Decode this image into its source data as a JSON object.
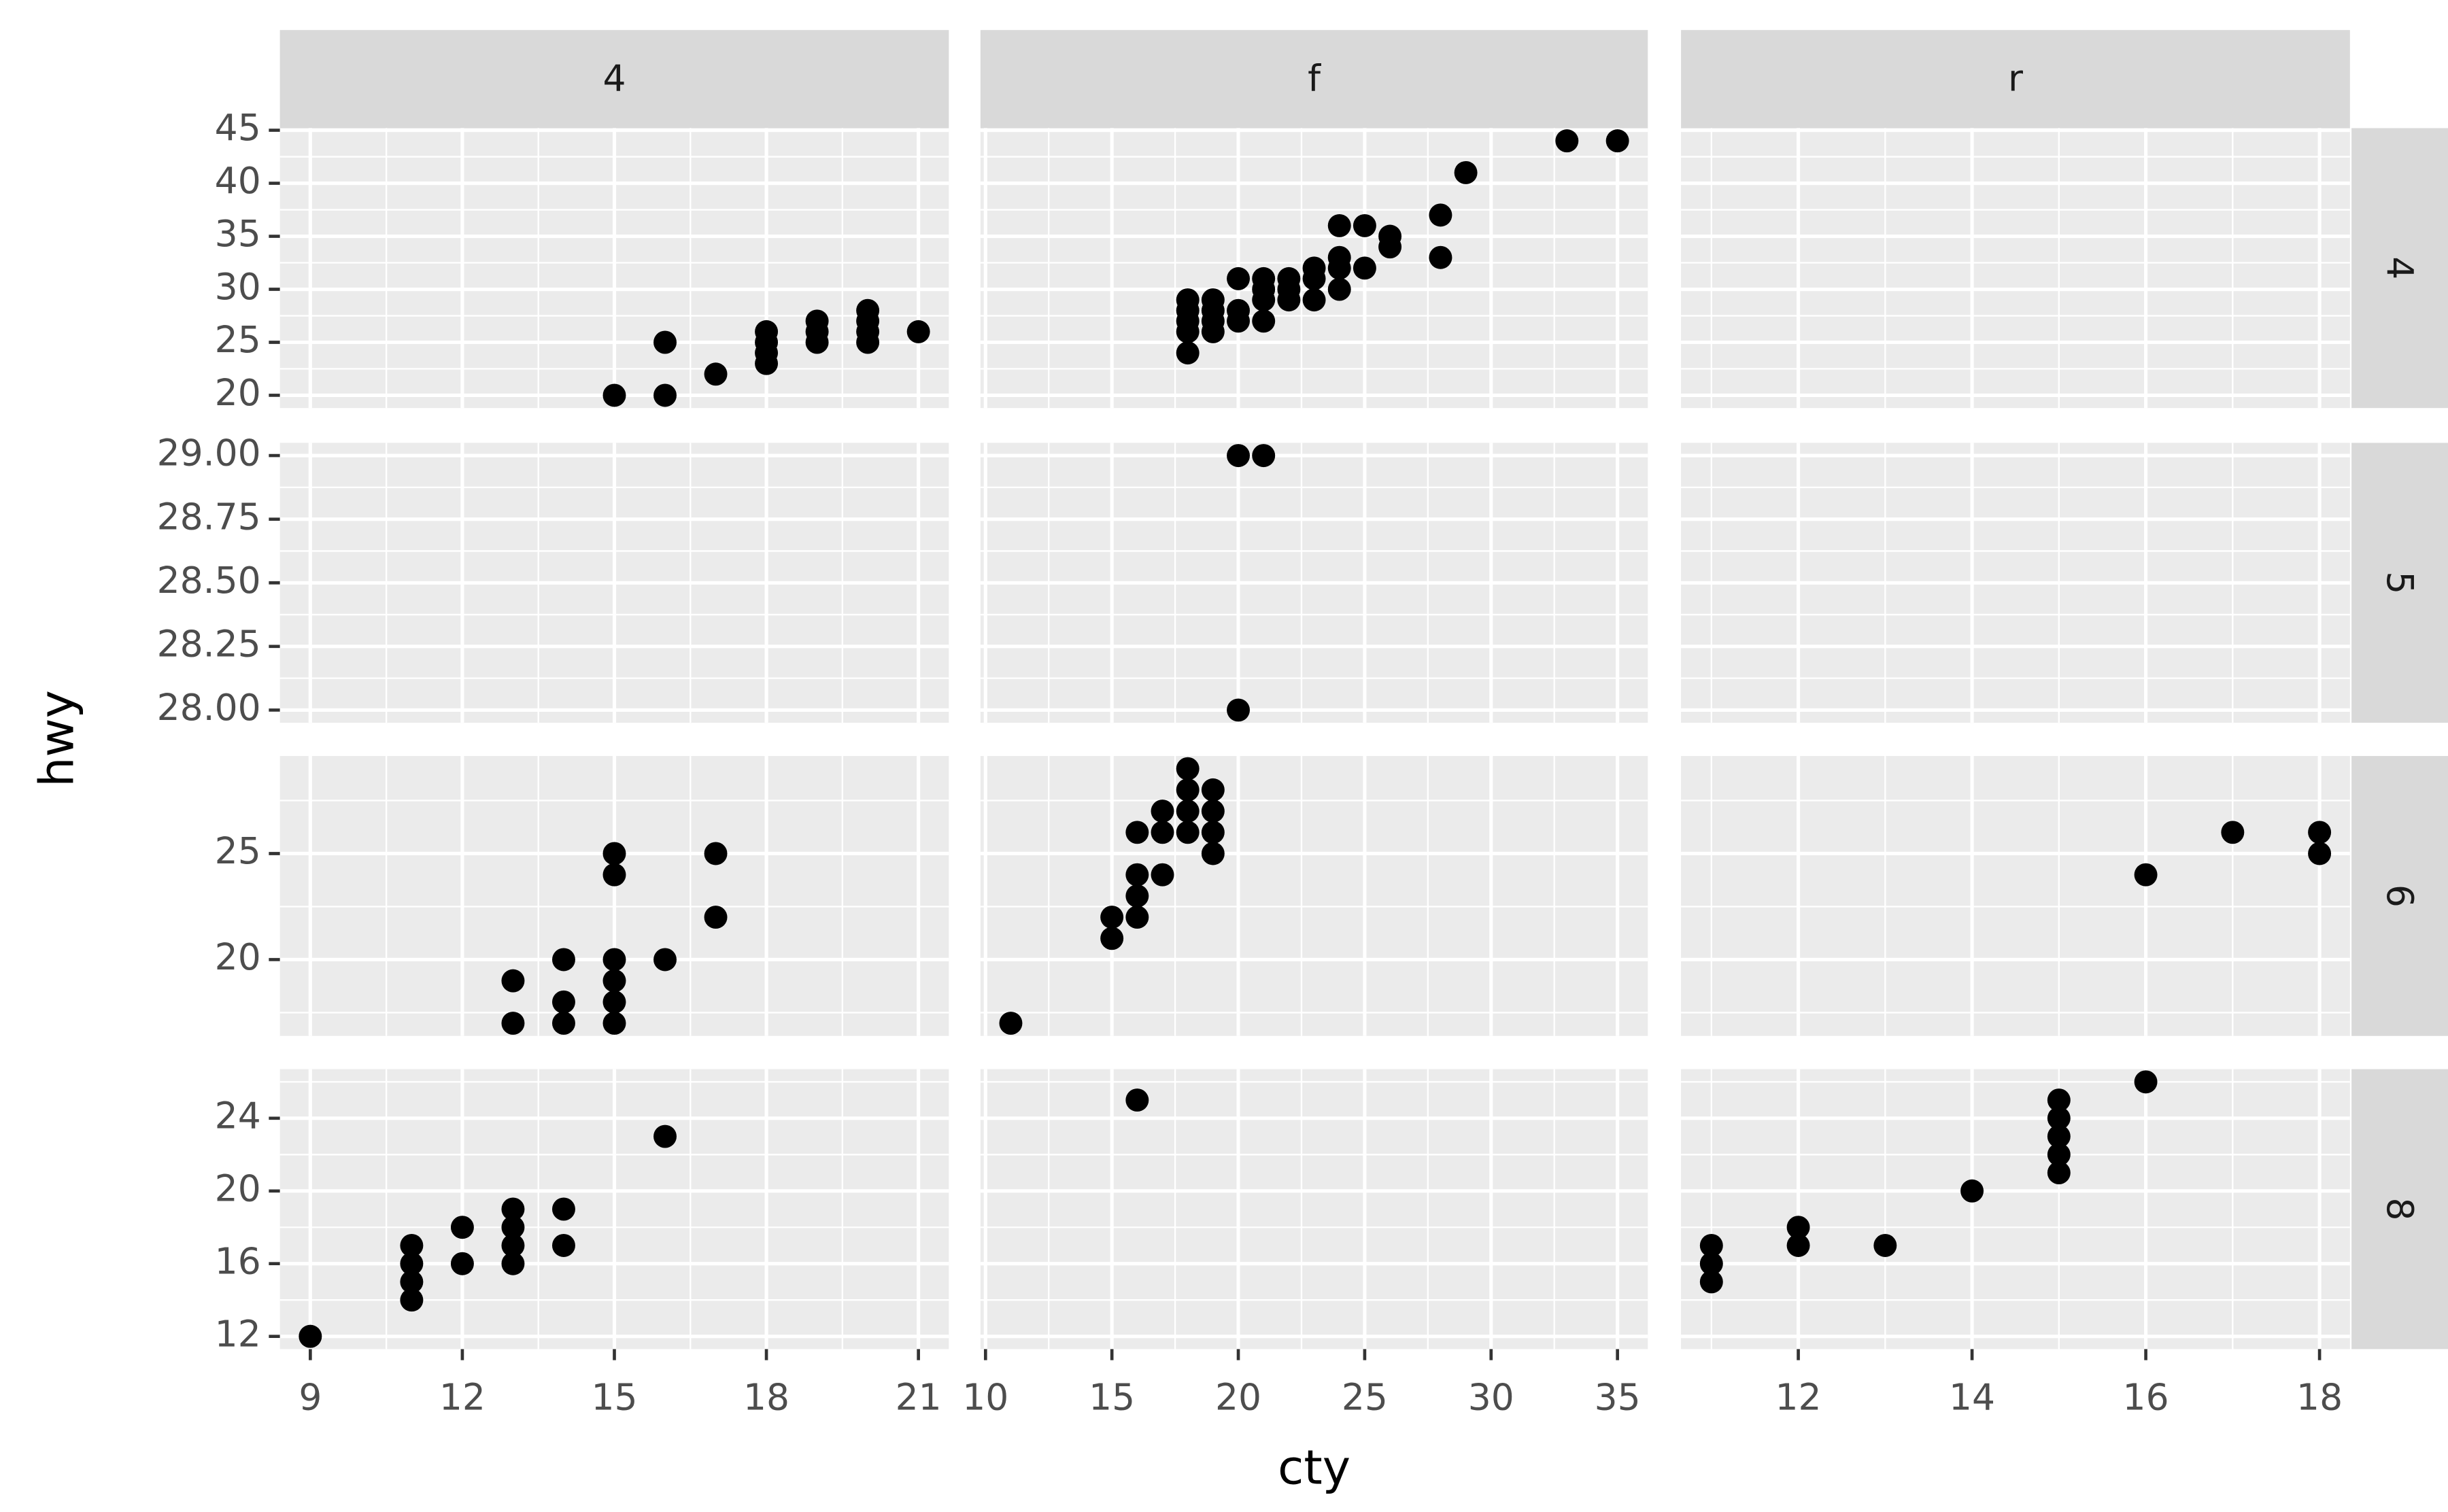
{
  "chart_data": {
    "type": "scatter",
    "x_label": "cty",
    "y_label": "hwy",
    "grid": true,
    "color": "#000000",
    "columns": [
      {
        "label": "4",
        "xlim": [
          8.4,
          21.6
        ],
        "xticks": [
          9,
          12,
          15,
          18,
          21
        ]
      },
      {
        "label": "f",
        "xlim": [
          9.8,
          36.2
        ],
        "xticks": [
          10,
          15,
          20,
          25,
          30,
          35
        ]
      },
      {
        "label": "r",
        "xlim": [
          10.65,
          18.35
        ],
        "xticks": [
          12,
          14,
          16,
          18
        ]
      }
    ],
    "rows": [
      {
        "label": "4",
        "ylim": [
          18.8,
          45.2
        ],
        "yticks": [
          20,
          25,
          30,
          35,
          40,
          45
        ]
      },
      {
        "label": "5",
        "ylim": [
          27.95,
          29.05
        ],
        "yticks": [
          {
            "value": 28,
            "label": "28.00"
          },
          {
            "value": 28.25,
            "label": "28.25"
          },
          {
            "value": 28.5,
            "label": "28.50"
          },
          {
            "value": 28.75,
            "label": "28.75"
          },
          {
            "value": 29,
            "label": "29.00"
          }
        ]
      },
      {
        "label": "6",
        "ylim": [
          16.4,
          29.6
        ],
        "yticks": [
          20,
          25
        ]
      },
      {
        "label": "8",
        "ylim": [
          11.3,
          26.7
        ],
        "yticks": [
          12,
          16,
          20,
          24
        ]
      }
    ],
    "panels": [
      [
        {
          "x": [
            15,
            16,
            16,
            17,
            18,
            18,
            18,
            18,
            19,
            19,
            19,
            20,
            20,
            20,
            20,
            21
          ],
          "y": [
            20,
            20,
            25,
            22,
            23,
            24,
            25,
            26,
            25,
            26,
            27,
            25,
            26,
            27,
            28,
            26
          ]
        },
        {
          "x": [
            18,
            18,
            18,
            18,
            18,
            19,
            19,
            19,
            19,
            20,
            20,
            20,
            21,
            21,
            21,
            21,
            22,
            22,
            22,
            23,
            23,
            23,
            24,
            24,
            24,
            24,
            25,
            25,
            26,
            26,
            28,
            28,
            29,
            33,
            35
          ],
          "y": [
            24,
            26,
            27,
            28,
            29,
            26,
            27,
            28,
            29,
            31,
            28,
            27,
            27,
            29,
            30,
            31,
            29,
            30,
            31,
            29,
            31,
            32,
            30,
            32,
            33,
            36,
            32,
            36,
            34,
            35,
            33,
            37,
            41,
            44,
            44
          ]
        },
        {
          "x": [],
          "y": []
        }
      ],
      [
        {
          "x": [],
          "y": []
        },
        {
          "x": [
            20,
            21,
            20
          ],
          "y": [
            29,
            29,
            28
          ]
        },
        {
          "x": [],
          "y": []
        }
      ],
      [
        {
          "x": [
            13,
            13,
            14,
            14,
            14,
            15,
            15,
            15,
            15,
            15,
            15,
            16,
            17,
            17
          ],
          "y": [
            17,
            19,
            17,
            18,
            20,
            17,
            18,
            19,
            20,
            24,
            25,
            20,
            22,
            25
          ]
        },
        {
          "x": [
            11,
            15,
            15,
            16,
            16,
            16,
            16,
            17,
            17,
            17,
            18,
            18,
            18,
            18,
            19,
            19,
            19,
            19
          ],
          "y": [
            17,
            21,
            22,
            22,
            23,
            24,
            26,
            24,
            26,
            27,
            26,
            27,
            28,
            29,
            25,
            26,
            27,
            28
          ]
        },
        {
          "x": [
            16,
            17,
            18,
            18
          ],
          "y": [
            24,
            26,
            25,
            26
          ]
        }
      ],
      [
        {
          "x": [
            9,
            11,
            11,
            11,
            11,
            12,
            12,
            13,
            13,
            13,
            13,
            14,
            14,
            16
          ],
          "y": [
            12,
            14,
            15,
            16,
            17,
            16,
            18,
            16,
            17,
            18,
            19,
            17,
            19,
            23
          ]
        },
        {
          "x": [
            16
          ],
          "y": [
            25
          ]
        },
        {
          "x": [
            11,
            11,
            11,
            12,
            12,
            13,
            14,
            15,
            15,
            15,
            15,
            15,
            16
          ],
          "y": [
            15,
            16,
            17,
            17,
            18,
            17,
            20,
            21,
            22,
            23,
            24,
            25,
            26
          ]
        }
      ]
    ]
  }
}
